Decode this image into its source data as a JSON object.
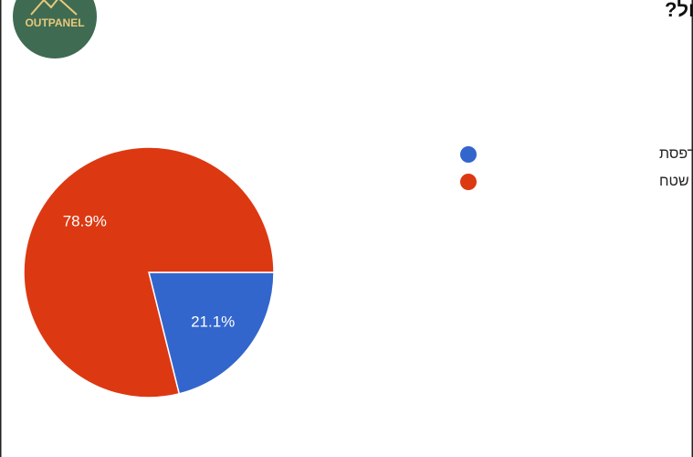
{
  "logo": {
    "text": "OUTPANEL"
  },
  "chart_data": {
    "type": "pie",
    "title": "כיצד את/ה מנווט בטיול?",
    "categories": [
      "מפת סימון שבילים מודפסת",
      "אפליקציות ניווט שטח"
    ],
    "values": [
      21.1,
      78.9
    ],
    "value_labels": [
      "21.1%",
      "78.9%"
    ],
    "colors": [
      "#3366cc",
      "#dc3912"
    ],
    "legend": "right"
  }
}
